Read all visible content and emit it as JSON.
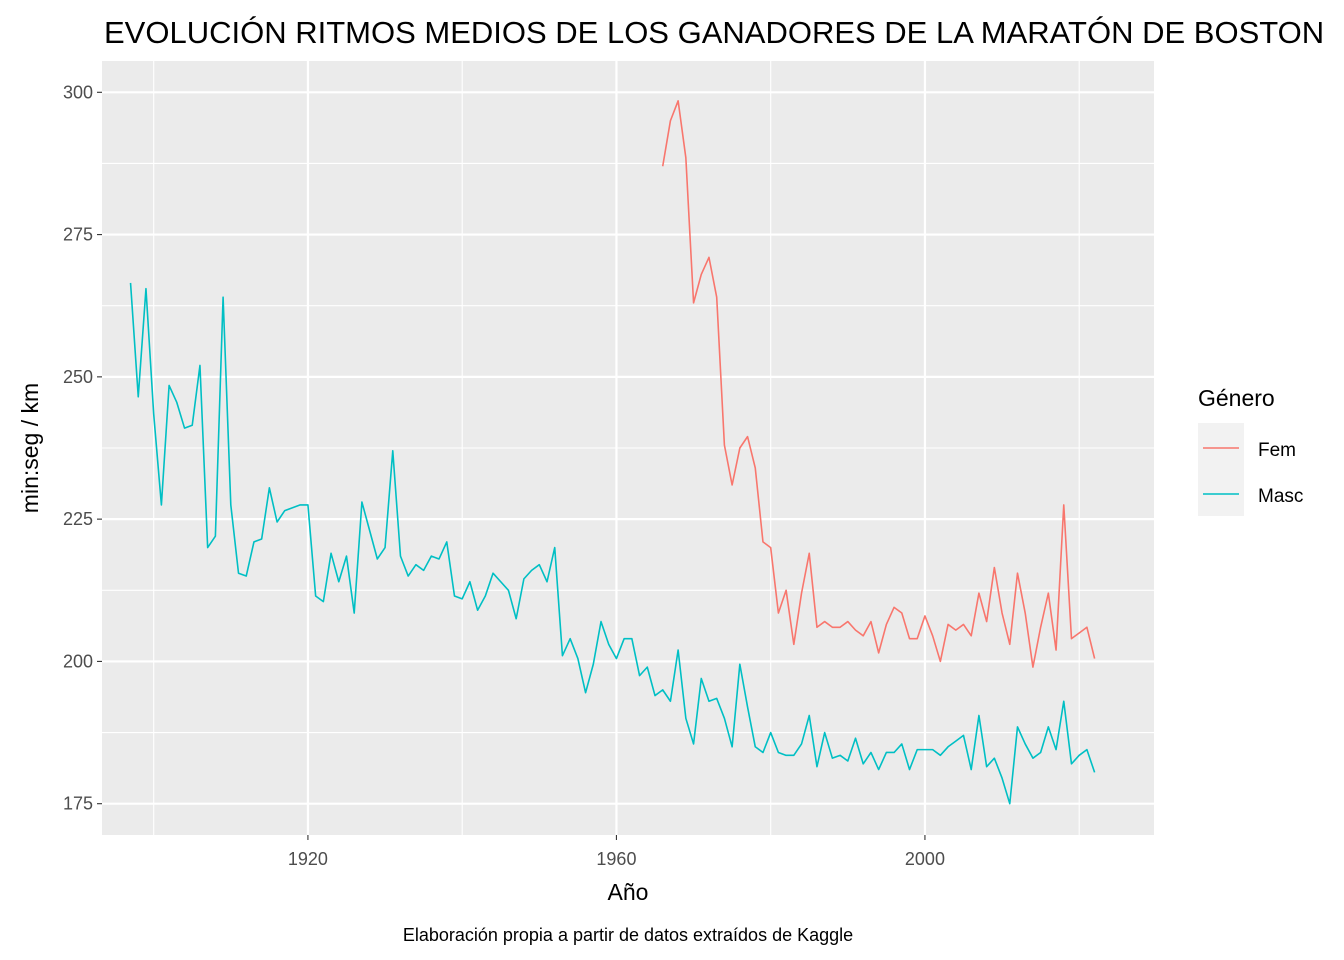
{
  "chart_data": {
    "type": "line",
    "title": "EVOLUCIÓN RITMOS MEDIOS DE LOS GANADORES DE LA MARATÓN DE BOSTON",
    "xlabel": "Año",
    "ylabel": "min:seg / km",
    "caption": "Elaboración propia a partir de datos extraídos de Kaggle",
    "xlim": [
      1893.3,
      2029.7
    ],
    "ylim": [
      169.5,
      305.5
    ],
    "x_ticks": [
      1920,
      1960,
      2000
    ],
    "x_tick_labels": [
      "1920",
      "1960",
      "2000"
    ],
    "y_ticks": [
      175,
      200,
      225,
      250,
      275,
      300
    ],
    "y_tick_labels": [
      "175",
      "200",
      "225",
      "250",
      "275",
      "300"
    ],
    "grid": true,
    "legend": {
      "title": "Género",
      "position": "right"
    },
    "series": [
      {
        "name": "Fem",
        "color": "#F8766D",
        "x": [
          1966,
          1967,
          1968,
          1969,
          1970,
          1971,
          1972,
          1973,
          1974,
          1975,
          1976,
          1977,
          1978,
          1979,
          1980,
          1981,
          1982,
          1983,
          1984,
          1985,
          1986,
          1987,
          1988,
          1989,
          1990,
          1991,
          1992,
          1993,
          1994,
          1995,
          1996,
          1997,
          1998,
          1999,
          2000,
          2001,
          2002,
          2003,
          2004,
          2005,
          2006,
          2007,
          2008,
          2009,
          2010,
          2011,
          2012,
          2013,
          2014,
          2015,
          2016,
          2017,
          2018,
          2019,
          2020,
          2021,
          2022
        ],
        "values": [
          287,
          295,
          298.5,
          288.5,
          263,
          268,
          271,
          264,
          238,
          231,
          237.5,
          239.5,
          234,
          221,
          220,
          208.5,
          212.5,
          203,
          212,
          219,
          206,
          207,
          206,
          206,
          207,
          205.5,
          204.5,
          207,
          201.5,
          206.5,
          209.5,
          208.5,
          204,
          204,
          208,
          204.5,
          200,
          206.5,
          205.5,
          206.5,
          204.5,
          212,
          207,
          216.5,
          208.5,
          203,
          215.5,
          208.5,
          199,
          206,
          212,
          202,
          227.5,
          204,
          205,
          206,
          200.5
        ]
      },
      {
        "name": "Masc",
        "color": "#00BFC4",
        "x": [
          1897,
          1898,
          1899,
          1900,
          1901,
          1902,
          1903,
          1904,
          1905,
          1906,
          1907,
          1908,
          1909,
          1910,
          1911,
          1912,
          1913,
          1914,
          1915,
          1916,
          1917,
          1918,
          1919,
          1920,
          1921,
          1922,
          1923,
          1924,
          1925,
          1926,
          1927,
          1928,
          1929,
          1930,
          1931,
          1932,
          1933,
          1934,
          1935,
          1936,
          1937,
          1938,
          1939,
          1940,
          1941,
          1942,
          1943,
          1944,
          1945,
          1946,
          1947,
          1948,
          1949,
          1950,
          1951,
          1952,
          1953,
          1954,
          1955,
          1956,
          1957,
          1958,
          1959,
          1960,
          1961,
          1962,
          1963,
          1964,
          1965,
          1966,
          1967,
          1968,
          1969,
          1970,
          1971,
          1972,
          1973,
          1974,
          1975,
          1976,
          1977,
          1978,
          1979,
          1980,
          1981,
          1982,
          1983,
          1984,
          1985,
          1986,
          1987,
          1988,
          1989,
          1990,
          1991,
          1992,
          1993,
          1994,
          1995,
          1996,
          1997,
          1998,
          1999,
          2000,
          2001,
          2002,
          2003,
          2004,
          2005,
          2006,
          2007,
          2008,
          2009,
          2010,
          2011,
          2012,
          2013,
          2014,
          2015,
          2016,
          2017,
          2018,
          2019,
          2020,
          2021,
          2022
        ],
        "values": [
          266.5,
          246.5,
          265.5,
          243.5,
          227.5,
          248.5,
          245.5,
          241,
          241.5,
          252,
          220,
          222,
          264,
          227.5,
          215.5,
          215,
          221,
          221.5,
          230.5,
          224.5,
          226.5,
          227,
          227.5,
          227.5,
          211.5,
          210.5,
          219,
          214,
          218.5,
          208.5,
          228,
          223,
          218,
          220,
          237,
          218.5,
          215,
          217,
          216,
          218.5,
          218,
          221,
          211.5,
          211,
          214,
          209,
          211.5,
          215.5,
          214,
          212.5,
          207.5,
          214.5,
          216,
          217,
          214,
          220,
          201,
          204,
          200.5,
          194.5,
          199.5,
          207,
          203,
          200.5,
          204,
          204,
          197.5,
          199,
          194,
          195,
          193,
          202,
          190,
          185.5,
          197,
          193,
          193.5,
          190,
          185,
          199.5,
          192,
          185,
          184,
          187.5,
          184,
          183.5,
          183.5,
          185.5,
          190.5,
          181.5,
          187.5,
          183,
          183.5,
          182.5,
          186.5,
          182,
          184,
          181,
          184,
          184,
          185.5,
          181,
          184.5,
          184.5,
          184.5,
          183.5,
          185,
          186,
          187,
          181,
          190.5,
          181.5,
          183,
          179.5,
          175,
          188.5,
          185.5,
          183,
          184,
          188.5,
          184.5,
          193,
          182,
          183.5,
          184.5,
          180.5
        ]
      }
    ]
  }
}
